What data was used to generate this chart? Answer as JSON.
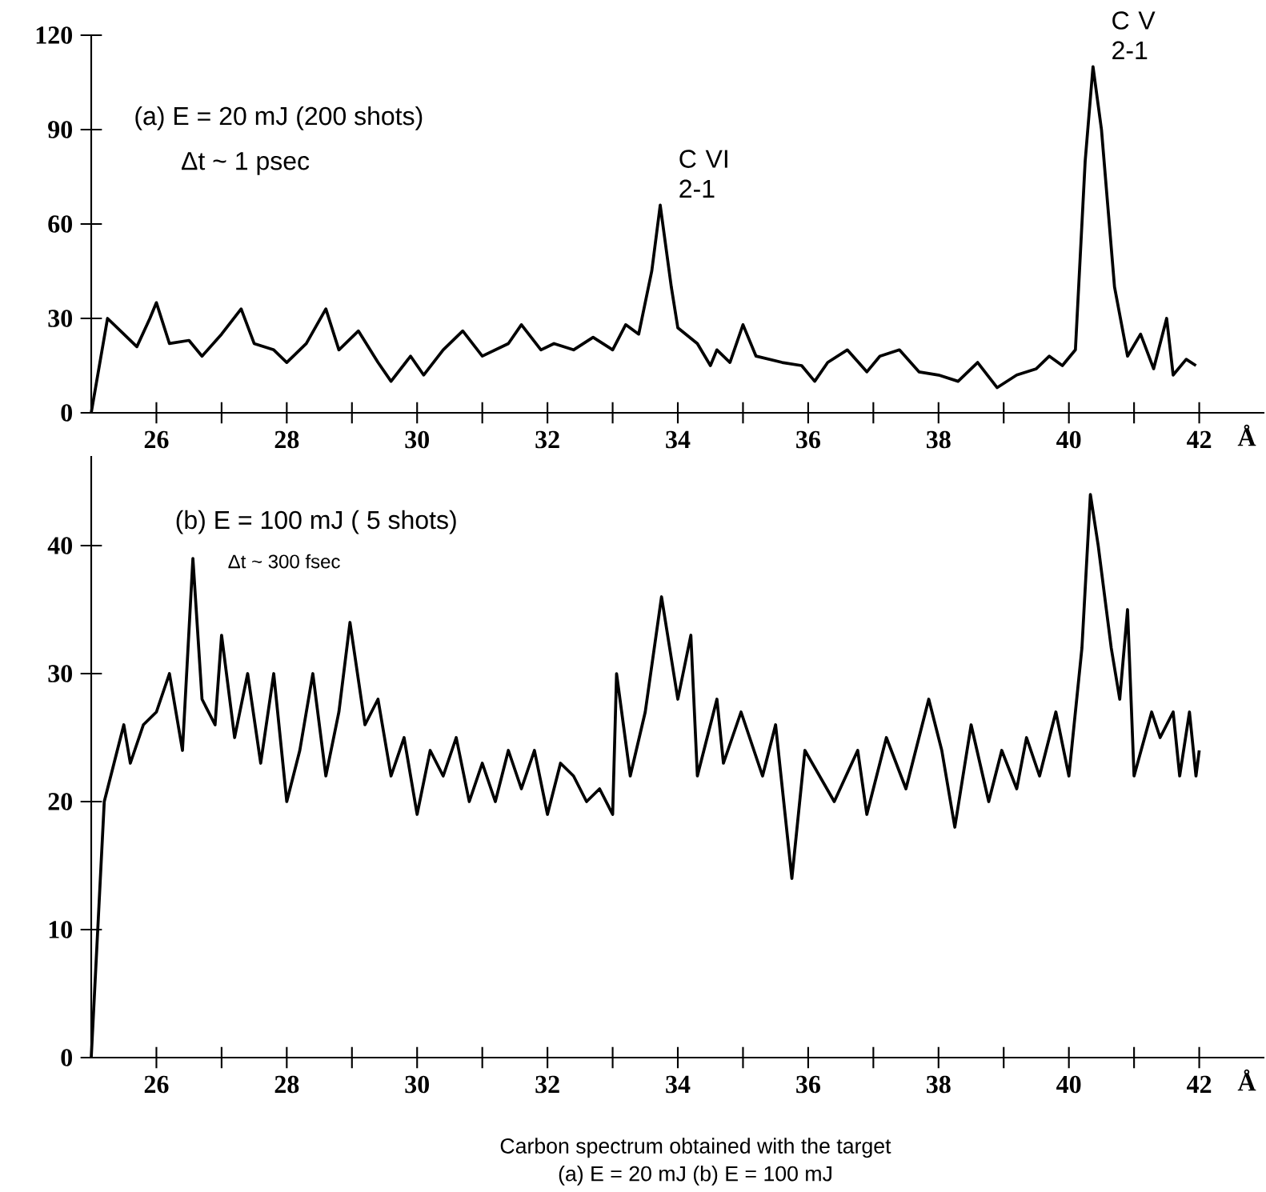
{
  "chart_data": [
    {
      "type": "line",
      "xlabel": "Å",
      "x": [
        25.0,
        25.25,
        25.5,
        25.7,
        25.9,
        26.0,
        26.2,
        26.5,
        26.7,
        27.0,
        27.3,
        27.5,
        27.8,
        28.0,
        28.3,
        28.6,
        28.8,
        29.1,
        29.4,
        29.6,
        29.9,
        30.1,
        30.4,
        30.7,
        31.0,
        31.4,
        31.6,
        31.9,
        32.1,
        32.4,
        32.7,
        33.0,
        33.2,
        33.4,
        33.6,
        33.73,
        33.9,
        34.0,
        34.3,
        34.5,
        34.6,
        34.8,
        35.0,
        35.2,
        35.6,
        35.9,
        36.1,
        36.3,
        36.6,
        36.9,
        37.1,
        37.4,
        37.7,
        38.0,
        38.3,
        38.6,
        38.9,
        39.2,
        39.5,
        39.7,
        39.9,
        40.1,
        40.25,
        40.37,
        40.5,
        40.7,
        40.9,
        41.1,
        41.3,
        41.5,
        41.6,
        41.8,
        41.95
      ],
      "series": [
        {
          "color": "#000000",
          "values": [
            0,
            30,
            25,
            21,
            30,
            35,
            22,
            23,
            18,
            25,
            33,
            22,
            20,
            16,
            22,
            33,
            20,
            26,
            16,
            10,
            18,
            12,
            20,
            26,
            18,
            22,
            28,
            20,
            22,
            20,
            24,
            20,
            28,
            25,
            45,
            66,
            40,
            27,
            22,
            15,
            20,
            16,
            28,
            18,
            16,
            15,
            10,
            16,
            20,
            13,
            18,
            20,
            13,
            12,
            10,
            16,
            8,
            12,
            14,
            18,
            15,
            20,
            80,
            110,
            90,
            40,
            18,
            25,
            14,
            30,
            12,
            17,
            15
          ]
        }
      ],
      "xlim": [
        25,
        43
      ],
      "ylim": [
        0,
        120
      ],
      "xticks": [
        26,
        {
          "value": 27,
          "label": null
        },
        28,
        {
          "value": 29,
          "label": null
        },
        30,
        {
          "value": 31,
          "label": null
        },
        32,
        {
          "value": 33,
          "label": null
        },
        34,
        {
          "value": 35,
          "label": null
        },
        36,
        {
          "value": 37,
          "label": null
        },
        38,
        {
          "value": 39,
          "label": null
        },
        40,
        {
          "value": 41,
          "label": null
        },
        42
      ],
      "yticks": [
        0,
        30,
        60,
        90,
        120
      ],
      "annotations": [
        "(a) E = 20 mJ (200 shots)",
        "Δt ~ 1 psec",
        {
          "text": "C VI 2-1",
          "x": 33.73,
          "y": 66
        },
        {
          "text": "C V 2-1",
          "x": 40.37,
          "y": 110
        }
      ]
    },
    {
      "type": "line",
      "xlabel": "Å",
      "x": [
        25.0,
        25.2,
        25.35,
        25.5,
        25.6,
        25.8,
        26.0,
        26.2,
        26.4,
        26.56,
        26.7,
        26.9,
        27.0,
        27.2,
        27.4,
        27.6,
        27.8,
        28.0,
        28.2,
        28.4,
        28.6,
        28.8,
        28.97,
        29.2,
        29.4,
        29.6,
        29.8,
        30.0,
        30.2,
        30.4,
        30.6,
        30.8,
        31.0,
        31.2,
        31.4,
        31.6,
        31.8,
        32.0,
        32.2,
        32.4,
        32.6,
        32.8,
        33.0,
        33.06,
        33.27,
        33.5,
        33.75,
        34.0,
        34.2,
        34.3,
        34.6,
        34.7,
        34.97,
        35.3,
        35.5,
        35.75,
        35.95,
        36.4,
        36.76,
        36.9,
        37.2,
        37.5,
        37.85,
        38.05,
        38.25,
        38.5,
        38.77,
        38.97,
        39.2,
        39.35,
        39.55,
        39.8,
        40.0,
        40.2,
        40.33,
        40.45,
        40.65,
        40.78,
        40.9,
        41.0,
        41.27,
        41.4,
        41.6,
        41.7,
        41.85,
        41.95,
        42.0
      ],
      "series": [
        {
          "color": "#000000",
          "values": [
            0,
            20,
            23,
            26,
            23,
            26,
            27,
            30,
            24,
            39,
            28,
            26,
            33,
            25,
            30,
            23,
            30,
            20,
            24,
            30,
            22,
            27,
            34,
            26,
            28,
            22,
            25,
            19,
            24,
            22,
            25,
            20,
            23,
            20,
            24,
            21,
            24,
            19,
            23,
            22,
            20,
            21,
            19,
            30,
            22,
            27,
            36,
            28,
            33,
            22,
            28,
            23,
            27,
            22,
            26,
            14,
            24,
            20,
            24,
            19,
            25,
            21,
            28,
            24,
            18,
            26,
            20,
            24,
            21,
            25,
            22,
            27,
            22,
            32,
            44,
            40,
            32,
            28,
            35,
            22,
            27,
            25,
            27,
            22,
            27,
            22,
            24
          ]
        }
      ],
      "xlim": [
        25,
        43
      ],
      "ylim": [
        0,
        47
      ],
      "xticks": [
        26,
        {
          "value": 27,
          "label": null
        },
        28,
        {
          "value": 29,
          "label": null
        },
        30,
        {
          "value": 31,
          "label": null
        },
        32,
        {
          "value": 33,
          "label": null
        },
        34,
        {
          "value": 35,
          "label": null
        },
        36,
        {
          "value": 37,
          "label": null
        },
        38,
        {
          "value": 39,
          "label": null
        },
        40,
        {
          "value": 41,
          "label": null
        },
        42
      ],
      "yticks": [
        0,
        10,
        20,
        30,
        40
      ],
      "annotations": [
        "(b) E = 100 mJ ( 5 shots)",
        "Δt ~ 300 fsec",
        "Carbon spectrum obtained with the target",
        "(a)   E = 20 mJ    (b)   E = 100 mJ"
      ]
    }
  ]
}
